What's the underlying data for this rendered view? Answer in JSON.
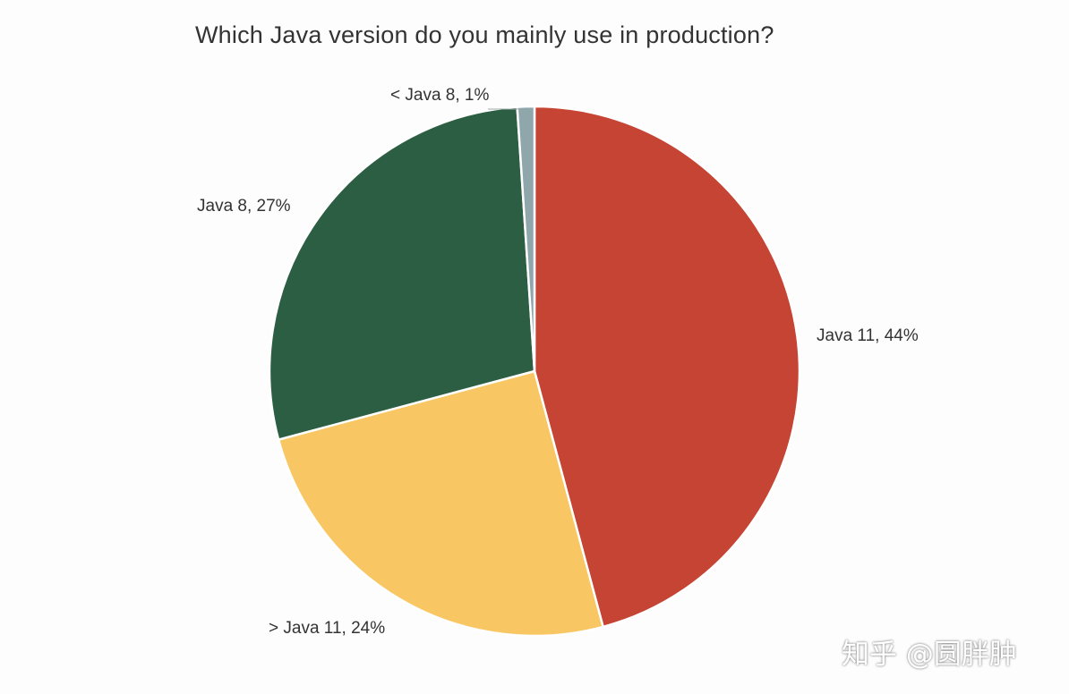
{
  "chart_data": {
    "type": "pie",
    "title": "Which Java version do you mainly use in production?",
    "slices": [
      {
        "label": "Java 11, 44%",
        "category": "Java 11",
        "value": 44,
        "color": "#c64433"
      },
      {
        "label": "> Java 11, 24%",
        "category": "> Java 11",
        "value": 24,
        "color": "#f8c763"
      },
      {
        "label": "Java 8, 27%",
        "category": "Java 8",
        "value": 27,
        "color": "#2b5e42"
      },
      {
        "label": "< Java 8, 1%",
        "category": "< Java 8",
        "value": 1,
        "color": "#8fa7ab"
      }
    ],
    "legend": "none"
  },
  "watermark": "知乎 @圆胖肿"
}
